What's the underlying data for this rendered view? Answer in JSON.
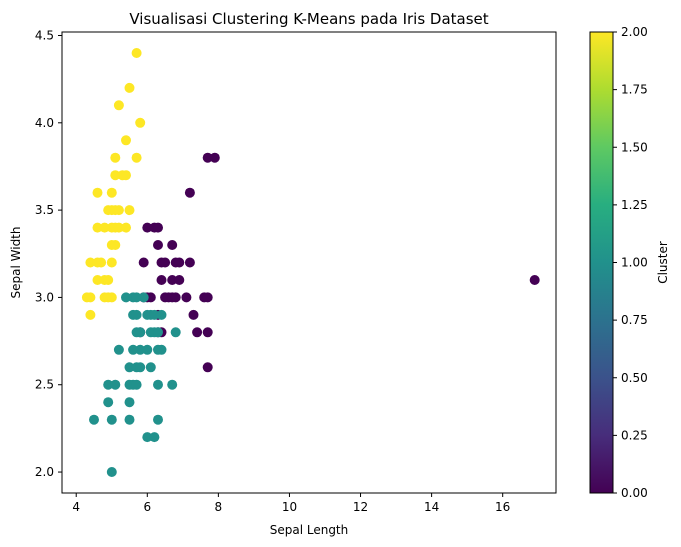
{
  "chart_data": {
    "type": "scatter",
    "title": "Visualisasi Clustering K-Means pada Iris Dataset",
    "xlabel": "Sepal Length",
    "ylabel": "Sepal Width",
    "xlim": [
      3.6,
      17.5
    ],
    "ylim": [
      1.88,
      4.52
    ],
    "xticks": [
      4,
      6,
      8,
      10,
      12,
      14,
      16
    ],
    "yticks": [
      2.0,
      2.5,
      3.0,
      3.5,
      4.0,
      4.5
    ],
    "grid": false,
    "colorbar": {
      "label": "Cluster",
      "colormap": "viridis",
      "range": [
        0.0,
        2.0
      ],
      "ticks": [
        "0.00",
        "0.25",
        "0.50",
        "0.75",
        "1.00",
        "1.25",
        "1.50",
        "1.75",
        "2.00"
      ]
    },
    "cluster_colors": {
      "0": "#440154",
      "1": "#21918c",
      "2": "#fde725"
    },
    "series": [
      {
        "cluster": 2,
        "points": [
          [
            5.7,
            4.4
          ],
          [
            5.5,
            4.2
          ],
          [
            5.2,
            4.1
          ],
          [
            5.8,
            4.0
          ],
          [
            5.4,
            3.9
          ],
          [
            5.1,
            3.8
          ],
          [
            5.7,
            3.8
          ],
          [
            5.1,
            3.7
          ],
          [
            5.3,
            3.7
          ],
          [
            5.4,
            3.7
          ],
          [
            4.6,
            3.6
          ],
          [
            5.0,
            3.6
          ],
          [
            4.9,
            3.5
          ],
          [
            5.0,
            3.5
          ],
          [
            5.1,
            3.5
          ],
          [
            5.2,
            3.5
          ],
          [
            5.5,
            3.5
          ],
          [
            4.6,
            3.4
          ],
          [
            4.8,
            3.4
          ],
          [
            5.0,
            3.4
          ],
          [
            5.1,
            3.4
          ],
          [
            5.2,
            3.4
          ],
          [
            5.4,
            3.4
          ],
          [
            5.0,
            3.3
          ],
          [
            5.1,
            3.3
          ],
          [
            4.4,
            3.2
          ],
          [
            4.6,
            3.2
          ],
          [
            4.7,
            3.2
          ],
          [
            5.0,
            3.2
          ],
          [
            4.6,
            3.1
          ],
          [
            4.8,
            3.1
          ],
          [
            4.9,
            3.1
          ],
          [
            4.3,
            3.0
          ],
          [
            4.4,
            3.0
          ],
          [
            4.8,
            3.0
          ],
          [
            4.9,
            3.0
          ],
          [
            5.0,
            3.0
          ],
          [
            4.4,
            2.9
          ]
        ]
      },
      {
        "cluster": 0,
        "points": [
          [
            7.7,
            3.8
          ],
          [
            7.9,
            3.8
          ],
          [
            7.2,
            3.6
          ],
          [
            6.0,
            3.4
          ],
          [
            6.2,
            3.4
          ],
          [
            6.3,
            3.4
          ],
          [
            6.3,
            3.3
          ],
          [
            6.7,
            3.3
          ],
          [
            5.9,
            3.2
          ],
          [
            6.4,
            3.2
          ],
          [
            6.5,
            3.2
          ],
          [
            6.8,
            3.2
          ],
          [
            6.9,
            3.2
          ],
          [
            7.2,
            3.2
          ],
          [
            6.4,
            3.1
          ],
          [
            6.7,
            3.1
          ],
          [
            6.9,
            3.1
          ],
          [
            5.9,
            3.0
          ],
          [
            6.0,
            3.0
          ],
          [
            6.1,
            3.0
          ],
          [
            6.5,
            3.0
          ],
          [
            6.6,
            3.0
          ],
          [
            6.7,
            3.0
          ],
          [
            6.8,
            3.0
          ],
          [
            7.1,
            3.0
          ],
          [
            7.6,
            3.0
          ],
          [
            7.7,
            3.0
          ],
          [
            6.3,
            2.9
          ],
          [
            7.3,
            2.9
          ],
          [
            5.8,
            2.8
          ],
          [
            6.3,
            2.8
          ],
          [
            6.4,
            2.8
          ],
          [
            7.4,
            2.8
          ],
          [
            7.7,
            2.8
          ],
          [
            7.7,
            2.6
          ],
          [
            16.9,
            3.1
          ]
        ]
      },
      {
        "cluster": 1,
        "points": [
          [
            5.4,
            3.0
          ],
          [
            5.6,
            3.0
          ],
          [
            5.7,
            3.0
          ],
          [
            5.9,
            3.0
          ],
          [
            6.0,
            2.9
          ],
          [
            6.1,
            2.9
          ],
          [
            6.2,
            2.9
          ],
          [
            5.6,
            2.9
          ],
          [
            5.7,
            2.9
          ],
          [
            6.4,
            2.9
          ],
          [
            5.7,
            2.8
          ],
          [
            5.8,
            2.8
          ],
          [
            6.1,
            2.8
          ],
          [
            6.2,
            2.8
          ],
          [
            6.3,
            2.8
          ],
          [
            6.8,
            2.8
          ],
          [
            5.8,
            2.7
          ],
          [
            5.6,
            2.7
          ],
          [
            6.0,
            2.7
          ],
          [
            6.3,
            2.7
          ],
          [
            5.2,
            2.7
          ],
          [
            6.4,
            2.7
          ],
          [
            5.5,
            2.6
          ],
          [
            5.7,
            2.6
          ],
          [
            5.8,
            2.6
          ],
          [
            6.1,
            2.6
          ],
          [
            5.6,
            2.5
          ],
          [
            5.5,
            2.5
          ],
          [
            4.9,
            2.5
          ],
          [
            5.1,
            2.5
          ],
          [
            5.7,
            2.5
          ],
          [
            6.3,
            2.5
          ],
          [
            6.7,
            2.5
          ],
          [
            4.9,
            2.4
          ],
          [
            5.5,
            2.4
          ],
          [
            4.5,
            2.3
          ],
          [
            5.0,
            2.3
          ],
          [
            5.5,
            2.3
          ],
          [
            6.3,
            2.3
          ],
          [
            6.0,
            2.2
          ],
          [
            6.2,
            2.2
          ],
          [
            5.0,
            2.0
          ]
        ]
      }
    ]
  }
}
